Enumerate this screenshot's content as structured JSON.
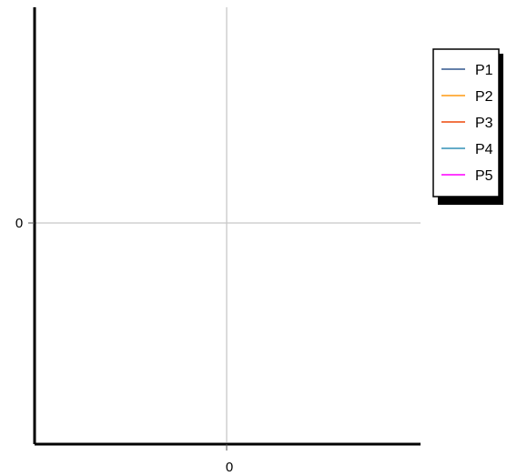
{
  "chart_data": {
    "type": "line",
    "title": "",
    "xlabel": "",
    "ylabel": "",
    "x_ticks": [
      "0"
    ],
    "y_ticks": [
      "0"
    ],
    "grid": true,
    "legend_position": "top-right",
    "series": [
      {
        "name": "P1",
        "color": "#4e6e9e",
        "x": [],
        "y": []
      },
      {
        "name": "P2",
        "color": "#ffa833",
        "x": [],
        "y": []
      },
      {
        "name": "P3",
        "color": "#f0622d",
        "x": [],
        "y": []
      },
      {
        "name": "P4",
        "color": "#4fa0c0",
        "x": [],
        "y": []
      },
      {
        "name": "P5",
        "color": "#ff1fff",
        "x": [],
        "y": []
      }
    ]
  }
}
